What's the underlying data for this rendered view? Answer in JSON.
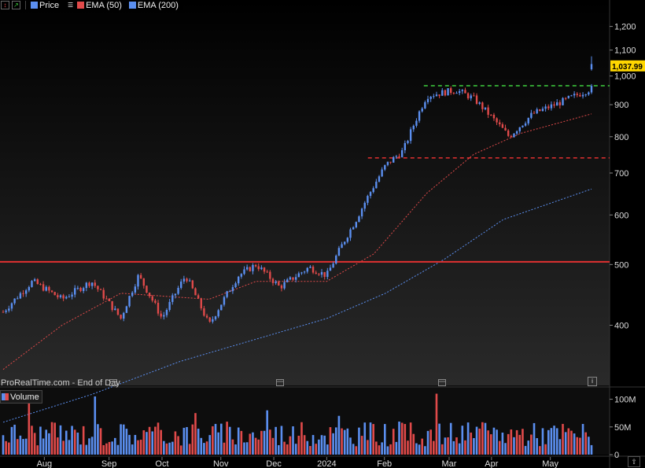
{
  "toolbar": {
    "price_label": "Price",
    "ema50_label": "EMA (50)",
    "ema200_label": "EMA (200)",
    "price_color": "#5b8ff0",
    "ema50_color": "#e04a4a",
    "ema200_color": "#5b8ff0"
  },
  "source_text": "ProRealTime.com - End of Day",
  "volume_label": "Volume",
  "info_icon": "i",
  "corner_icon": "up-arrow",
  "colors": {
    "background": "#000000",
    "up_candle": "#5b8ff0",
    "down_candle": "#e04a4a",
    "last_price_badge": "#ffd700",
    "resistance_line": "#e03030",
    "top_dashed": "#3fcf3f",
    "mid_dashed": "#e03030"
  },
  "chart_data": [
    {
      "type": "candlestick",
      "title": "",
      "x_labels": [
        "Aug",
        "Sep",
        "Oct",
        "Nov",
        "Dec",
        "2024",
        "Feb",
        "Mar",
        "Apr",
        "May"
      ],
      "y_scale": "log",
      "y_ticks": [
        400,
        500,
        600,
        700,
        800,
        900,
        1000,
        1100,
        1200
      ],
      "y_tick_labels": [
        "400",
        "500",
        "600",
        "700",
        "800",
        "900",
        "1,000",
        "1,100",
        "1,200"
      ],
      "ylim": [
        330,
        1270
      ],
      "last_price": 1037.99,
      "last_price_label": "1,037.99",
      "horizontal_lines": [
        {
          "value": 505,
          "style": "solid",
          "color": "#e03030"
        },
        {
          "value": 965,
          "style": "dashed",
          "color": "#3fcf3f",
          "start_label": "Mar"
        },
        {
          "value": 740,
          "style": "dashed",
          "color": "#e03030",
          "start_label": "Feb"
        }
      ],
      "anchors": [
        {
          "x": 0,
          "y": 420
        },
        {
          "x": 0.05,
          "y": 470
        },
        {
          "x": 0.1,
          "y": 440
        },
        {
          "x": 0.15,
          "y": 470
        },
        {
          "x": 0.2,
          "y": 410
        },
        {
          "x": 0.23,
          "y": 480
        },
        {
          "x": 0.27,
          "y": 410
        },
        {
          "x": 0.31,
          "y": 480
        },
        {
          "x": 0.35,
          "y": 400
        },
        {
          "x": 0.4,
          "y": 480
        },
        {
          "x": 0.43,
          "y": 500
        },
        {
          "x": 0.47,
          "y": 460
        },
        {
          "x": 0.52,
          "y": 495
        },
        {
          "x": 0.55,
          "y": 480
        },
        {
          "x": 0.6,
          "y": 590
        },
        {
          "x": 0.65,
          "y": 720
        },
        {
          "x": 0.68,
          "y": 760
        },
        {
          "x": 0.72,
          "y": 930
        },
        {
          "x": 0.77,
          "y": 950
        },
        {
          "x": 0.8,
          "y": 920
        },
        {
          "x": 0.86,
          "y": 800
        },
        {
          "x": 0.9,
          "y": 870
        },
        {
          "x": 0.95,
          "y": 910
        },
        {
          "x": 1.0,
          "y": 955
        }
      ],
      "ema50": [
        {
          "x": 0,
          "y": 340
        },
        {
          "x": 0.1,
          "y": 400
        },
        {
          "x": 0.2,
          "y": 450
        },
        {
          "x": 0.35,
          "y": 440
        },
        {
          "x": 0.43,
          "y": 470
        },
        {
          "x": 0.55,
          "y": 470
        },
        {
          "x": 0.63,
          "y": 520
        },
        {
          "x": 0.72,
          "y": 650
        },
        {
          "x": 0.8,
          "y": 750
        },
        {
          "x": 0.88,
          "y": 810
        },
        {
          "x": 1.0,
          "y": 870
        }
      ],
      "ema200": [
        {
          "x": 0,
          "y": 280
        },
        {
          "x": 0.15,
          "y": 310
        },
        {
          "x": 0.3,
          "y": 350
        },
        {
          "x": 0.43,
          "y": 380
        },
        {
          "x": 0.55,
          "y": 410
        },
        {
          "x": 0.65,
          "y": 450
        },
        {
          "x": 0.75,
          "y": 510
        },
        {
          "x": 0.85,
          "y": 590
        },
        {
          "x": 1.0,
          "y": 660
        }
      ],
      "candle_count": 206
    },
    {
      "type": "bar",
      "title": "Volume",
      "y_ticks": [
        0,
        50000000,
        100000000
      ],
      "y_tick_labels": [
        "0",
        "50M",
        "100M"
      ],
      "ylim": [
        0,
        115000000
      ],
      "spike_values": [
        {
          "x": 0.045,
          "value": 100000000
        },
        {
          "x": 0.155,
          "value": 105000000
        },
        {
          "x": 0.325,
          "value": 75000000
        },
        {
          "x": 0.45,
          "value": 80000000
        },
        {
          "x": 0.57,
          "value": 70000000
        },
        {
          "x": 0.735,
          "value": 110000000
        },
        {
          "x": 0.9,
          "value": 77000000
        }
      ],
      "base_range": [
        15000000,
        60000000
      ]
    }
  ]
}
